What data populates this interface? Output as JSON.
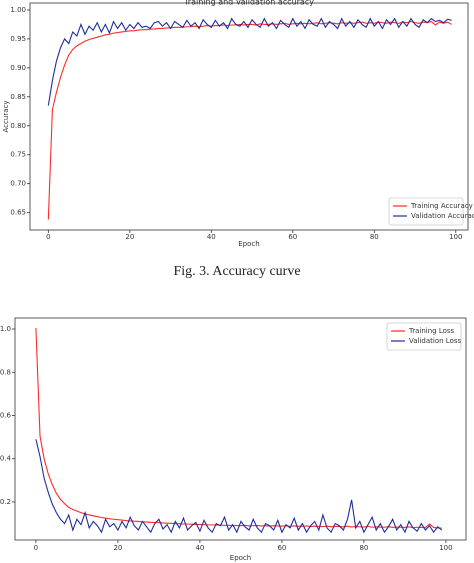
{
  "caption": "Fig. 3.   Accuracy curve",
  "chart_data": [
    {
      "type": "line",
      "title": "Training and Validation accuracy",
      "xlabel": "Epoch",
      "ylabel": "Accuracy",
      "x": [
        0,
        1,
        2,
        3,
        4,
        5,
        6,
        7,
        8,
        9,
        10,
        11,
        12,
        13,
        14,
        15,
        16,
        17,
        18,
        19,
        20,
        21,
        22,
        23,
        24,
        25,
        26,
        27,
        28,
        29,
        30,
        31,
        32,
        33,
        34,
        35,
        36,
        37,
        38,
        39,
        40,
        41,
        42,
        43,
        44,
        45,
        46,
        47,
        48,
        49,
        50,
        51,
        52,
        53,
        54,
        55,
        56,
        57,
        58,
        59,
        60,
        61,
        62,
        63,
        64,
        65,
        66,
        67,
        68,
        69,
        70,
        71,
        72,
        73,
        74,
        75,
        76,
        77,
        78,
        79,
        80,
        81,
        82,
        83,
        84,
        85,
        86,
        87,
        88,
        89,
        90,
        91,
        92,
        93,
        94,
        95,
        96,
        97,
        98,
        99
      ],
      "series": [
        {
          "name": "Training Accuracy",
          "color": "#ff2a2a",
          "values": [
            0.638,
            0.828,
            0.858,
            0.884,
            0.905,
            0.922,
            0.932,
            0.938,
            0.942,
            0.946,
            0.949,
            0.951,
            0.953,
            0.955,
            0.957,
            0.958,
            0.96,
            0.961,
            0.962,
            0.963,
            0.964,
            0.964,
            0.965,
            0.966,
            0.966,
            0.967,
            0.967,
            0.968,
            0.968,
            0.969,
            0.969,
            0.97,
            0.97,
            0.97,
            0.971,
            0.971,
            0.972,
            0.971,
            0.972,
            0.973,
            0.972,
            0.973,
            0.973,
            0.974,
            0.973,
            0.974,
            0.974,
            0.975,
            0.974,
            0.975,
            0.975,
            0.974,
            0.976,
            0.975,
            0.975,
            0.976,
            0.975,
            0.976,
            0.977,
            0.975,
            0.976,
            0.977,
            0.976,
            0.977,
            0.976,
            0.977,
            0.978,
            0.976,
            0.977,
            0.978,
            0.977,
            0.976,
            0.978,
            0.977,
            0.978,
            0.977,
            0.978,
            0.979,
            0.977,
            0.978,
            0.977,
            0.979,
            0.978,
            0.977,
            0.979,
            0.978,
            0.977,
            0.979,
            0.978,
            0.98,
            0.978,
            0.977,
            0.979,
            0.978,
            0.98,
            0.974,
            0.979,
            0.977,
            0.979,
            0.975
          ]
        },
        {
          "name": "Validation Accuracy",
          "color": "#1f2f9a",
          "values": [
            0.835,
            0.878,
            0.912,
            0.935,
            0.95,
            0.942,
            0.962,
            0.955,
            0.975,
            0.958,
            0.972,
            0.965,
            0.978,
            0.962,
            0.975,
            0.96,
            0.98,
            0.968,
            0.978,
            0.965,
            0.975,
            0.968,
            0.978,
            0.97,
            0.972,
            0.968,
            0.978,
            0.98,
            0.972,
            0.978,
            0.968,
            0.98,
            0.975,
            0.97,
            0.982,
            0.972,
            0.978,
            0.968,
            0.983,
            0.975,
            0.97,
            0.982,
            0.972,
            0.978,
            0.968,
            0.985,
            0.975,
            0.972,
            0.98,
            0.97,
            0.983,
            0.975,
            0.97,
            0.985,
            0.972,
            0.978,
            0.968,
            0.982,
            0.975,
            0.97,
            0.985,
            0.972,
            0.98,
            0.968,
            0.983,
            0.975,
            0.972,
            0.985,
            0.97,
            0.98,
            0.975,
            0.968,
            0.985,
            0.972,
            0.98,
            0.97,
            0.983,
            0.975,
            0.97,
            0.985,
            0.972,
            0.98,
            0.968,
            0.983,
            0.975,
            0.985,
            0.97,
            0.98,
            0.972,
            0.985,
            0.975,
            0.97,
            0.983,
            0.978,
            0.985,
            0.98,
            0.982,
            0.978,
            0.984,
            0.982
          ]
        }
      ],
      "xlim": [
        -4.5,
        103
      ],
      "xticks": [
        0,
        20,
        40,
        60,
        80,
        100
      ],
      "ylim": [
        0.62,
        1.012
      ],
      "yticks": [
        0.65,
        {
          "value": 0.7,
          "label": "0.70"
        },
        0.75,
        {
          "value": 0.8,
          "label": "0.80"
        },
        0.85,
        {
          "value": 0.9,
          "label": "0.90"
        },
        0.95,
        {
          "value": 1,
          "label": "1.00"
        }
      ],
      "legend": "lower right"
    },
    {
      "type": "line",
      "xlabel": "Epoch",
      "x": [
        0,
        1,
        2,
        3,
        4,
        5,
        6,
        7,
        8,
        9,
        10,
        11,
        12,
        13,
        14,
        15,
        16,
        17,
        18,
        19,
        20,
        21,
        22,
        23,
        24,
        25,
        26,
        27,
        28,
        29,
        30,
        31,
        32,
        33,
        34,
        35,
        36,
        37,
        38,
        39,
        40,
        41,
        42,
        43,
        44,
        45,
        46,
        47,
        48,
        49,
        50,
        51,
        52,
        53,
        54,
        55,
        56,
        57,
        58,
        59,
        60,
        61,
        62,
        63,
        64,
        65,
        66,
        67,
        68,
        69,
        70,
        71,
        72,
        73,
        74,
        75,
        76,
        77,
        78,
        79,
        80,
        81,
        82,
        83,
        84,
        85,
        86,
        87,
        88,
        89,
        90,
        91,
        92,
        93,
        94,
        95,
        96,
        97,
        98,
        99
      ],
      "series": [
        {
          "name": "Training Loss",
          "color": "#ff2a2a",
          "values": [
            1.005,
            0.505,
            0.4,
            0.33,
            0.28,
            0.24,
            0.212,
            0.192,
            0.175,
            0.165,
            0.158,
            0.15,
            0.145,
            0.14,
            0.136,
            0.132,
            0.128,
            0.125,
            0.122,
            0.12,
            0.118,
            0.116,
            0.114,
            0.112,
            0.111,
            0.11,
            0.108,
            0.107,
            0.106,
            0.105,
            0.104,
            0.103,
            0.102,
            0.101,
            0.1,
            0.099,
            0.098,
            0.098,
            0.097,
            0.096,
            0.096,
            0.095,
            0.094,
            0.094,
            0.093,
            0.093,
            0.092,
            0.092,
            0.091,
            0.091,
            0.09,
            0.092,
            0.089,
            0.09,
            0.091,
            0.089,
            0.09,
            0.088,
            0.09,
            0.089,
            0.088,
            0.09,
            0.087,
            0.089,
            0.088,
            0.087,
            0.089,
            0.086,
            0.088,
            0.087,
            0.086,
            0.088,
            0.085,
            0.087,
            0.086,
            0.085,
            0.088,
            0.084,
            0.086,
            0.085,
            0.084,
            0.087,
            0.083,
            0.085,
            0.084,
            0.083,
            0.086,
            0.082,
            0.084,
            0.083,
            0.082,
            0.085,
            0.081,
            0.083,
            0.082,
            0.081,
            0.098,
            0.082,
            0.08,
            0.079
          ]
        },
        {
          "name": "Validation Loss",
          "color": "#1f2f9a",
          "values": [
            0.49,
            0.41,
            0.31,
            0.245,
            0.19,
            0.15,
            0.12,
            0.1,
            0.14,
            0.07,
            0.12,
            0.095,
            0.15,
            0.08,
            0.11,
            0.09,
            0.06,
            0.12,
            0.085,
            0.1,
            0.07,
            0.11,
            0.08,
            0.13,
            0.09,
            0.07,
            0.11,
            0.085,
            0.06,
            0.1,
            0.12,
            0.075,
            0.095,
            0.06,
            0.11,
            0.08,
            0.125,
            0.07,
            0.09,
            0.105,
            0.065,
            0.115,
            0.08,
            0.06,
            0.1,
            0.09,
            0.13,
            0.07,
            0.095,
            0.06,
            0.11,
            0.085,
            0.07,
            0.12,
            0.08,
            0.06,
            0.1,
            0.09,
            0.07,
            0.115,
            0.06,
            0.095,
            0.08,
            0.125,
            0.07,
            0.1,
            0.06,
            0.09,
            0.11,
            0.07,
            0.14,
            0.08,
            0.06,
            0.1,
            0.09,
            0.07,
            0.12,
            0.21,
            0.08,
            0.11,
            0.06,
            0.095,
            0.13,
            0.07,
            0.1,
            0.06,
            0.085,
            0.12,
            0.07,
            0.095,
            0.06,
            0.11,
            0.08,
            0.065,
            0.1,
            0.07,
            0.09,
            0.06,
            0.085,
            0.07
          ]
        }
      ],
      "xlim": [
        -5.1,
        104.9
      ],
      "xticks": [
        0,
        20,
        40,
        60,
        80,
        100
      ],
      "ylim": [
        0.024,
        1.051
      ],
      "yticks": [
        0.2,
        0.4,
        0.6,
        0.8,
        {
          "value": 1,
          "label": "1.0"
        }
      ],
      "legend": "upper right"
    }
  ]
}
